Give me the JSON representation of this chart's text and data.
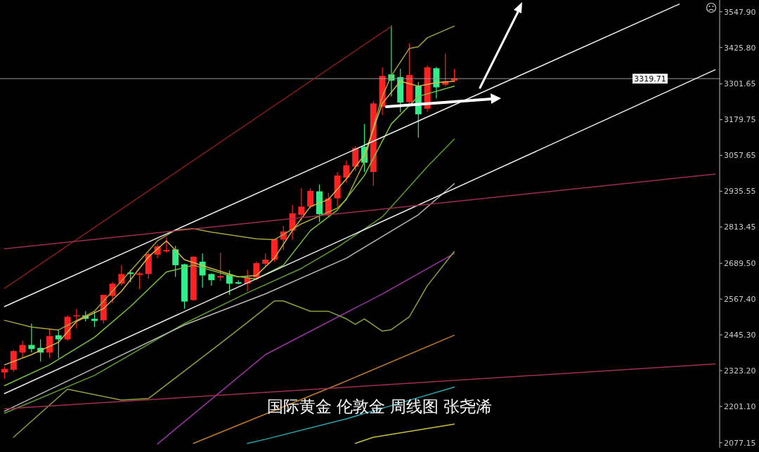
{
  "chart_data": {
    "type": "candlestick",
    "title": "国际黄金 伦敦金 周线图 张尧浠",
    "categories": [
      null,
      null,
      null,
      null,
      null,
      null,
      null,
      null,
      null,
      null,
      null,
      null,
      null,
      null,
      null,
      null,
      null,
      null,
      null,
      null,
      null,
      null,
      null,
      null,
      null,
      null,
      null,
      null,
      null,
      null,
      null,
      null,
      null,
      null,
      null,
      null,
      null,
      null,
      null,
      null,
      null,
      null,
      null,
      null,
      null,
      null,
      null,
      null,
      null,
      null,
      null,
      null,
      null,
      null,
      null,
      null,
      null,
      null,
      null,
      null,
      null,
      null,
      null,
      null,
      null,
      null,
      null,
      null,
      null,
      null,
      null,
      null,
      null,
      null,
      null,
      null,
      null,
      null,
      null,
      null
    ],
    "ohlc": [
      [
        2317,
        2336,
        2296,
        2329
      ],
      [
        2326,
        2394,
        2319,
        2390
      ],
      [
        2385,
        2425,
        2366,
        2411
      ],
      [
        2411,
        2484,
        2385,
        2397
      ],
      [
        2401,
        2430,
        2354,
        2385
      ],
      [
        2385,
        2467,
        2366,
        2441
      ],
      [
        2444,
        2465,
        2366,
        2430
      ],
      [
        2430,
        2512,
        2425,
        2507
      ],
      [
        2510,
        2535,
        2467,
        2512
      ],
      [
        2512,
        2526,
        2491,
        2500
      ],
      [
        2500,
        2526,
        2472,
        2493
      ],
      [
        2495,
        2583,
        2484,
        2582
      ],
      [
        2578,
        2625,
        2554,
        2620
      ],
      [
        2620,
        2683,
        2613,
        2653
      ],
      [
        2658,
        2667,
        2625,
        2653
      ],
      [
        2650,
        2660,
        2601,
        2655
      ],
      [
        2653,
        2726,
        2636,
        2721
      ],
      [
        2719,
        2754,
        2707,
        2747
      ],
      [
        2730,
        2777,
        2726,
        2735
      ],
      [
        2737,
        2749,
        2643,
        2683
      ],
      [
        2686,
        2688,
        2535,
        2559
      ],
      [
        2564,
        2714,
        2561,
        2712
      ],
      [
        2695,
        2723,
        2606,
        2648
      ],
      [
        2653,
        2655,
        2613,
        2632
      ],
      [
        2641,
        2726,
        2629,
        2646
      ],
      [
        2650,
        2665,
        2582,
        2620
      ],
      [
        2625,
        2632,
        2618,
        2620
      ],
      [
        2620,
        2667,
        2594,
        2641
      ],
      [
        2641,
        2695,
        2632,
        2690
      ],
      [
        2688,
        2723,
        2679,
        2702
      ],
      [
        2702,
        2773,
        2695,
        2772
      ],
      [
        2770,
        2817,
        2735,
        2798
      ],
      [
        2801,
        2888,
        2770,
        2860
      ],
      [
        2855,
        2947,
        2836,
        2883
      ],
      [
        2883,
        2947,
        2876,
        2937
      ],
      [
        2935,
        2958,
        2831,
        2857
      ],
      [
        2855,
        2930,
        2848,
        2911
      ],
      [
        2911,
        3001,
        2883,
        2989
      ],
      [
        2982,
        3040,
        2965,
        3024
      ],
      [
        3019,
        3090,
        3005,
        3083
      ],
      [
        3087,
        3165,
        3001,
        3033
      ],
      [
        3001,
        3243,
        2954,
        3235
      ],
      [
        3224,
        3358,
        3196,
        3329
      ],
      [
        3334,
        3501,
        3259,
        3313
      ],
      [
        3325,
        3353,
        3205,
        3238
      ],
      [
        3240,
        3440,
        3235,
        3332
      ],
      [
        3294,
        3308,
        3118,
        3198
      ],
      [
        3217,
        3365,
        3207,
        3358
      ],
      [
        3355,
        3360,
        3252,
        3290
      ],
      [
        3299,
        3405,
        3294,
        3311
      ],
      [
        3313,
        3353,
        3308,
        3320
      ],
      null,
      null,
      null,
      null,
      null,
      null,
      null,
      null,
      null,
      null,
      null,
      null,
      null,
      null,
      null,
      null,
      null,
      null,
      null,
      null,
      null,
      null,
      null,
      null,
      null,
      null,
      null,
      null,
      null
    ],
    "colors": [
      "#ff2222",
      "#ff2222",
      "#ff2222",
      "#33ee88",
      "#33ee88",
      "#ff2222",
      "#33ee88",
      "#ff2222",
      "#ff2222",
      "#33ee88",
      "#33ee88",
      "#ff2222",
      "#ff2222",
      "#ff2222",
      "#33ee88",
      "#ff2222",
      "#ff2222",
      "#ff2222",
      "#ff2222",
      "#33ee88",
      "#33ee88",
      "#ff2222",
      "#33ee88",
      "#33ee88",
      "#ff2222",
      "#33ee88",
      "#33ee88",
      "#ff2222",
      "#ff2222",
      "#ff2222",
      "#ff2222",
      "#ff2222",
      "#ff2222",
      "#ff2222",
      "#ff2222",
      "#33ee88",
      "#ff2222",
      "#ff2222",
      "#ff2222",
      "#ff2222",
      "#33ee88",
      "#ff2222",
      "#ff2222",
      "#33ee88",
      "#33ee88",
      "#ff2222",
      "#33ee88",
      "#ff2222",
      "#33ee88",
      "#ff2222",
      "#ff2222",
      null,
      null,
      null,
      null,
      null,
      null,
      null,
      null,
      null,
      null,
      null,
      null,
      null,
      null,
      null,
      null,
      null,
      null,
      null,
      null,
      null,
      null,
      null,
      null,
      null,
      null,
      null,
      null,
      null
    ],
    "series": [
      {
        "type": "line",
        "color": "#a6a23a",
        "values": [
          2495,
          null,
          null,
          2472,
          null,
          null,
          2462,
          null,
          null,
          null,
          2526,
          null,
          null,
          null,
          null,
          null,
          null,
          2766,
          null,
          2803,
          null,
          2808,
          null,
          2796,
          null,
          null,
          null,
          null,
          2773,
          null,
          2770,
          null,
          null,
          2824,
          null,
          null,
          null,
          2878,
          2907,
          null,
          3036,
          3153,
          3259,
          3329,
          null,
          3423,
          3428,
          3459,
          null,
          null,
          3499,
          null,
          null,
          null,
          null,
          null,
          null,
          null,
          null,
          null,
          null,
          null,
          null,
          null,
          null,
          null,
          null,
          null,
          null,
          null,
          null,
          null,
          null,
          null,
          null,
          null,
          null,
          null,
          null,
          null
        ]
      },
      {
        "type": "line",
        "color": "#d8b84a",
        "values": [
          2343,
          null,
          null,
          2378,
          null,
          null,
          2420,
          null,
          2491,
          null,
          null,
          2535,
          null,
          2594,
          null,
          null,
          2711,
          null,
          2766,
          null,
          2702,
          null,
          null,
          2672,
          null,
          null,
          2643,
          null,
          2648,
          null,
          2707,
          null,
          2801,
          null,
          2883,
          null,
          2907,
          null,
          2977,
          null,
          3059,
          null,
          3235,
          null,
          3311,
          null,
          3294,
          null,
          3306,
          null,
          3311,
          null,
          null,
          null,
          null,
          null,
          null,
          null,
          null,
          null,
          null,
          null,
          null,
          null,
          null,
          null,
          null,
          null,
          null,
          null,
          null,
          null,
          null,
          null,
          null,
          null,
          null,
          null,
          null,
          null
        ]
      },
      {
        "type": "line",
        "color": "#78c43c",
        "values": [
          2272,
          null,
          null,
          null,
          null,
          2343,
          null,
          null,
          null,
          null,
          2437,
          null,
          null,
          null,
          2542,
          null,
          null,
          null,
          2660,
          null,
          null,
          2683,
          null,
          null,
          null,
          2648,
          null,
          null,
          2636,
          null,
          null,
          2683,
          null,
          null,
          2801,
          null,
          null,
          2871,
          null,
          null,
          2989,
          null,
          null,
          3165,
          null,
          null,
          3259,
          null,
          null,
          null,
          3294,
          null,
          null,
          null,
          null,
          null,
          null,
          null,
          null,
          null,
          null,
          null,
          null,
          null,
          null,
          null,
          null,
          null,
          null,
          null,
          null,
          null,
          null,
          null,
          null,
          null,
          null,
          null,
          null,
          null
        ]
      },
      {
        "type": "line",
        "color": "#5f9e2e",
        "values": [
          2178,
          null,
          null,
          null,
          null,
          null,
          null,
          null,
          null,
          null,
          2307,
          null,
          null,
          null,
          null,
          null,
          null,
          null,
          null,
          null,
          2484,
          null,
          null,
          null,
          null,
          null,
          null,
          2589,
          null,
          null,
          null,
          null,
          null,
          2672,
          null,
          null,
          null,
          2744,
          null,
          null,
          null,
          null,
          2848,
          null,
          null,
          null,
          null,
          3019,
          null,
          null,
          3113,
          null,
          null,
          null,
          null,
          null,
          null,
          null,
          null,
          null,
          null,
          null,
          null,
          null,
          null,
          null,
          null,
          null,
          null,
          null,
          null,
          null,
          null,
          null,
          null,
          null,
          null,
          null,
          null,
          null
        ]
      },
      {
        "type": "line",
        "color": "#b8b8b8",
        "values": [
          2185,
          null,
          null,
          null,
          null,
          null,
          null,
          null,
          null,
          null,
          null,
          null,
          null,
          null,
          null,
          null,
          null,
          null,
          null,
          null,
          2479,
          null,
          null,
          null,
          null,
          null,
          null,
          null,
          null,
          2585,
          null,
          null,
          null,
          null,
          null,
          null,
          null,
          null,
          2707,
          null,
          null,
          null,
          null,
          null,
          null,
          null,
          2855,
          null,
          null,
          null,
          2961,
          null,
          null,
          null,
          null,
          null,
          null,
          null,
          null,
          null,
          null,
          null,
          null,
          null,
          null,
          null,
          null,
          null,
          null,
          null,
          null,
          null,
          null,
          null,
          null,
          null,
          null,
          null,
          null,
          null
        ]
      },
      {
        "type": "line",
        "color": "#a032a8",
        "values": [
          null,
          null,
          null,
          null,
          null,
          null,
          null,
          null,
          null,
          null,
          null,
          null,
          null,
          null,
          null,
          null,
          null,
          2073,
          null,
          null,
          null,
          null,
          null,
          null,
          null,
          null,
          null,
          null,
          null,
          2378,
          null,
          null,
          null,
          null,
          null,
          null,
          null,
          null,
          null,
          null,
          null,
          null,
          2585,
          null,
          null,
          null,
          null,
          null,
          null,
          null,
          2723,
          null,
          null,
          null,
          null,
          null,
          null,
          null,
          null,
          null,
          null,
          null,
          null,
          null,
          null,
          null,
          null,
          null,
          null,
          null,
          null,
          null,
          null,
          null,
          null,
          null,
          null,
          null,
          null,
          null
        ]
      },
      {
        "type": "line",
        "color": "#8aa33a",
        "values": [
          null,
          2096,
          null,
          null,
          null,
          null,
          null,
          2260,
          null,
          null,
          null,
          null,
          null,
          2223,
          null,
          null,
          2228,
          null,
          null,
          null,
          2322,
          null,
          null,
          null,
          2416,
          null,
          null,
          2488,
          null,
          null,
          2561,
          2561,
          null,
          null,
          2526,
          null,
          2526,
          null,
          2500,
          2481,
          2500,
          null,
          2458,
          2463,
          null,
          2507,
          null,
          2613,
          null,
          null,
          2730,
          null,
          null,
          null,
          null,
          null,
          null,
          null,
          null,
          null,
          null,
          null,
          null,
          null,
          null,
          null,
          null,
          null,
          null,
          null,
          null,
          null,
          null,
          null,
          null,
          null,
          null,
          null,
          null,
          null
        ]
      },
      {
        "type": "line",
        "color": "#c27a28",
        "values": [
          null,
          null,
          null,
          null,
          null,
          null,
          null,
          null,
          null,
          null,
          null,
          null,
          null,
          null,
          null,
          null,
          null,
          null,
          null,
          null,
          null,
          2075,
          null,
          null,
          null,
          null,
          null,
          null,
          null,
          null,
          null,
          null,
          null,
          null,
          null,
          null,
          null,
          2275,
          null,
          null,
          null,
          null,
          null,
          null,
          null,
          null,
          null,
          null,
          null,
          null,
          2444,
          null,
          null,
          null,
          null,
          null,
          null,
          null,
          null,
          null,
          null,
          null,
          null,
          null,
          null,
          null,
          null,
          null,
          null,
          null,
          null,
          null,
          null,
          null,
          null,
          null,
          null,
          null,
          null,
          null
        ]
      },
      {
        "type": "line",
        "color": "#2aa6b4",
        "values": [
          null,
          null,
          null,
          null,
          null,
          null,
          null,
          null,
          null,
          null,
          null,
          null,
          null,
          null,
          null,
          null,
          null,
          null,
          null,
          null,
          null,
          null,
          null,
          null,
          null,
          null,
          null,
          2075,
          null,
          2089,
          null,
          null,
          null,
          null,
          null,
          null,
          null,
          null,
          2159,
          null,
          null,
          null,
          null,
          null,
          2213,
          null,
          null,
          null,
          null,
          null,
          2267,
          null,
          null,
          null,
          null,
          null,
          null,
          null,
          null,
          null,
          null,
          null,
          null,
          null,
          null,
          null,
          null,
          null,
          null,
          null,
          null,
          null,
          null,
          null,
          null,
          null,
          null,
          null,
          null,
          null
        ]
      },
      {
        "type": "line",
        "color": "#c8c23a",
        "values": [
          null,
          null,
          null,
          null,
          null,
          null,
          null,
          null,
          null,
          null,
          null,
          null,
          null,
          null,
          null,
          null,
          null,
          null,
          null,
          null,
          null,
          null,
          null,
          null,
          null,
          null,
          null,
          null,
          null,
          null,
          null,
          null,
          null,
          null,
          null,
          null,
          null,
          null,
          null,
          2075,
          null,
          2096,
          null,
          null,
          null,
          null,
          null,
          null,
          null,
          null,
          2141,
          null,
          null,
          null,
          null,
          null,
          null,
          null,
          null,
          null,
          null,
          null,
          null,
          null,
          null,
          null,
          null,
          null,
          null,
          null,
          null,
          null,
          null,
          null,
          null,
          null,
          null,
          null,
          null,
          null
        ]
      },
      {
        "type": "line",
        "color": "#f0f0f0",
        "values": [
          2542,
          null,
          null,
          null,
          null,
          null,
          null,
          null,
          null,
          null,
          null,
          null,
          null,
          null,
          null,
          null,
          null,
          null,
          null,
          null,
          null,
          null,
          null,
          null,
          null,
          null,
          null,
          null,
          null,
          null,
          null,
          null,
          null,
          null,
          null,
          null,
          null,
          null,
          null,
          null,
          null,
          null,
          null,
          null,
          null,
          null,
          null,
          null,
          null,
          null,
          null,
          null,
          null,
          null,
          null,
          null,
          null,
          null,
          null,
          null,
          null,
          null,
          null,
          null,
          null,
          null,
          null,
          null,
          null,
          null,
          null,
          null,
          null,
          null,
          null,
          3574,
          null,
          null,
          null,
          null
        ]
      },
      {
        "type": "line",
        "color": "#f0f0f0",
        "values": [
          2245,
          null,
          null,
          null,
          null,
          null,
          null,
          null,
          null,
          null,
          null,
          null,
          null,
          null,
          null,
          null,
          null,
          null,
          null,
          null,
          null,
          null,
          null,
          null,
          null,
          null,
          null,
          null,
          null,
          null,
          null,
          null,
          null,
          null,
          null,
          null,
          null,
          null,
          null,
          null,
          null,
          null,
          null,
          null,
          null,
          null,
          null,
          null,
          null,
          null,
          null,
          null,
          null,
          null,
          null,
          null,
          null,
          null,
          null,
          null,
          null,
          null,
          null,
          null,
          null,
          null,
          null,
          null,
          null,
          null,
          null,
          null,
          null,
          null,
          null,
          null,
          null,
          null,
          null,
          3350
        ]
      },
      {
        "type": "line",
        "color": "#8a1c1c",
        "values": [
          2604,
          null,
          null,
          null,
          null,
          null,
          null,
          null,
          null,
          null,
          null,
          null,
          null,
          null,
          null,
          null,
          null,
          null,
          null,
          null,
          null,
          null,
          null,
          null,
          null,
          null,
          null,
          null,
          null,
          null,
          null,
          null,
          null,
          null,
          null,
          null,
          null,
          null,
          null,
          null,
          null,
          null,
          null,
          3498,
          null,
          null,
          null,
          null,
          null,
          null,
          null,
          null,
          null,
          null,
          null,
          null,
          null,
          null,
          null,
          null,
          null,
          null,
          null,
          null,
          null,
          null,
          null,
          null,
          null,
          null,
          null,
          null,
          null,
          null,
          null,
          null,
          null,
          null,
          null,
          null
        ]
      },
      {
        "type": "line",
        "color": "#9c2e4c",
        "values": [
          2739,
          null,
          null,
          null,
          null,
          null,
          null,
          null,
          null,
          null,
          null,
          null,
          null,
          null,
          null,
          null,
          null,
          null,
          null,
          null,
          null,
          null,
          null,
          null,
          null,
          null,
          null,
          null,
          null,
          null,
          null,
          null,
          null,
          null,
          null,
          null,
          null,
          null,
          null,
          null,
          null,
          null,
          null,
          null,
          null,
          null,
          null,
          null,
          null,
          null,
          null,
          null,
          null,
          null,
          null,
          null,
          null,
          null,
          null,
          null,
          null,
          null,
          null,
          null,
          null,
          null,
          null,
          null,
          null,
          null,
          null,
          null,
          null,
          null,
          null,
          null,
          null,
          null,
          null,
          2994
        ]
      },
      {
        "type": "line",
        "color": "#a0304e",
        "values": [
          2193,
          null,
          null,
          null,
          null,
          null,
          null,
          null,
          null,
          null,
          null,
          null,
          null,
          null,
          null,
          null,
          null,
          null,
          null,
          null,
          null,
          null,
          null,
          null,
          null,
          null,
          null,
          null,
          null,
          null,
          null,
          null,
          null,
          null,
          null,
          null,
          null,
          null,
          null,
          null,
          null,
          null,
          null,
          null,
          null,
          null,
          null,
          null,
          null,
          null,
          null,
          null,
          null,
          null,
          null,
          null,
          null,
          null,
          null,
          null,
          null,
          null,
          null,
          null,
          null,
          null,
          null,
          null,
          null,
          null,
          null,
          null,
          null,
          null,
          null,
          null,
          null,
          null,
          null,
          2346
        ]
      }
    ],
    "ylim": [
      2060,
      3588
    ],
    "yticks": [
      {
        "value": 3547.9,
        "label": "3547.90"
      },
      {
        "value": 3425.8,
        "label": "3425.80"
      },
      3301.65,
      3179.75,
      3057.65,
      2935.55,
      2813.45,
      {
        "value": 2689.5,
        "label": "2689.50"
      },
      {
        "value": 2567.4,
        "label": "2567.40"
      },
      {
        "value": 2445.3,
        "label": "2445.30"
      },
      {
        "value": 2323.2,
        "label": "2323.20"
      },
      {
        "value": 2201.1,
        "label": "2201.10"
      },
      2077.15
    ],
    "tick_labels": "y",
    "ref_lines": [
      {
        "axis": "y",
        "value": 3319.71,
        "label": "3319.71",
        "color": "#9a9a9a"
      }
    ]
  }
}
